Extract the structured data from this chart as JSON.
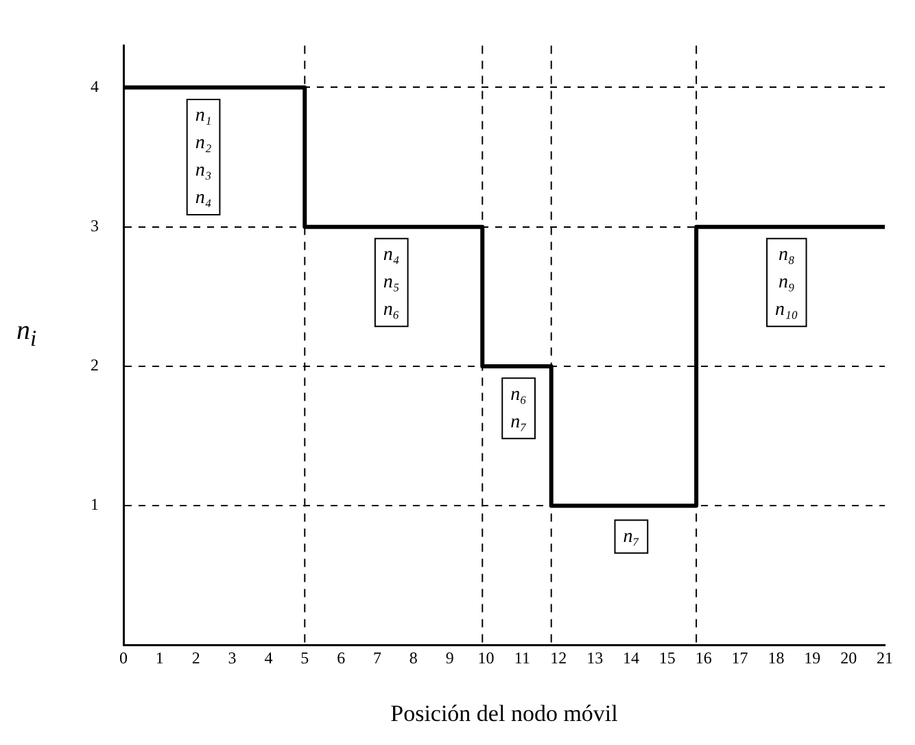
{
  "chart_data": {
    "type": "step",
    "xlabel": "Posición del nodo móvil",
    "ylabel": "n$_{i}$",
    "x": [
      0,
      5,
      9.9,
      11.8,
      15.8,
      21
    ],
    "series": [
      {
        "color": "#000000",
        "values": [
          4,
          3,
          2,
          1,
          3,
          3
        ]
      }
    ],
    "xlim": [
      0,
      21
    ],
    "xticks": [
      0,
      1,
      2,
      3,
      4,
      5,
      6,
      7,
      8,
      9,
      10,
      11,
      12,
      13,
      14,
      15,
      16,
      17,
      18,
      19,
      20,
      21
    ],
    "ylim": [
      0,
      4.3
    ],
    "yticks": [
      1,
      2,
      3,
      4
    ],
    "grid": "y",
    "legend": false,
    "marker": "none",
    "line_style": "solid",
    "ref_lines": [
      {
        "axis": "x",
        "value": 5,
        "line_style": "dashed"
      },
      {
        "axis": "x",
        "value": 9.9,
        "line_style": "dashed"
      },
      {
        "axis": "x",
        "value": 11.8,
        "line_style": "dashed"
      },
      {
        "axis": "x",
        "value": 15.8,
        "line_style": "dashed"
      }
    ],
    "annotations": [
      "n₁\nn₂\nn₃\nn₄",
      "n₄\nn₅\nn₆",
      "n₆\nn₇",
      "n₇",
      "n₈\nn₉\nn₁₀"
    ]
  }
}
